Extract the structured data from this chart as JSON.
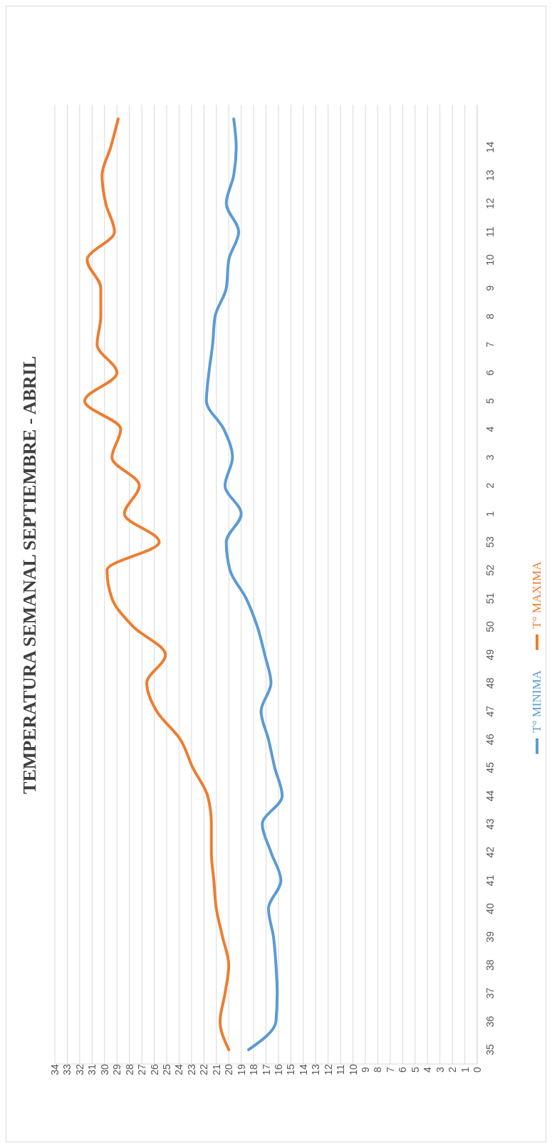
{
  "chart_data": {
    "type": "line",
    "title": "TEMPERATURA SEMANAL SEPTIEMBRE - ABRIL",
    "categories": [
      null,
      "14",
      "13",
      "12",
      "11",
      "10",
      "9",
      "8",
      "7",
      "6",
      "5",
      "4",
      "3",
      "2",
      "1",
      "53",
      "52",
      "51",
      "50",
      "49",
      "48",
      "47",
      "46",
      "45",
      "44",
      "43",
      "42",
      "41",
      "40",
      "39",
      "38",
      "37",
      "36",
      "35"
    ],
    "series": [
      {
        "name": "T° MINIMA",
        "color": "#5b9bd5",
        "values": [
          19.6,
          19.4,
          19.6,
          20.2,
          19.2,
          20.0,
          20.2,
          21.1,
          21.3,
          21.6,
          21.8,
          20.4,
          19.7,
          20.3,
          19.0,
          20.2,
          19.9,
          18.6,
          17.7,
          17.1,
          16.6,
          17.4,
          16.8,
          16.3,
          15.7,
          17.3,
          16.6,
          15.8,
          16.8,
          16.4,
          16.2,
          16.1,
          16.2,
          18.4
        ]
      },
      {
        "name": "T° MAXIMA",
        "color": "#ed7d31",
        "values": [
          28.9,
          29.5,
          30.2,
          29.9,
          29.2,
          31.4,
          30.3,
          30.3,
          30.6,
          29.0,
          31.6,
          28.7,
          29.4,
          27.2,
          28.4,
          25.6,
          29.8,
          29.4,
          27.7,
          25.1,
          26.6,
          25.8,
          23.9,
          22.9,
          21.7,
          21.4,
          21.4,
          21.2,
          21.0,
          20.5,
          20.0,
          20.3,
          20.7,
          20.0
        ]
      }
    ],
    "orientation": "horizontal",
    "xlim": [
      34,
      0
    ],
    "xticks": [
      0,
      1,
      2,
      3,
      4,
      5,
      6,
      7,
      8,
      9,
      10,
      11,
      12,
      13,
      14,
      15,
      16,
      17,
      18,
      19,
      20,
      21,
      22,
      23,
      24,
      25,
      26,
      27,
      28,
      29,
      30,
      31,
      32,
      33,
      34
    ],
    "grid": "x",
    "legend": "bottom",
    "marker": "none",
    "line_style": "solid"
  }
}
